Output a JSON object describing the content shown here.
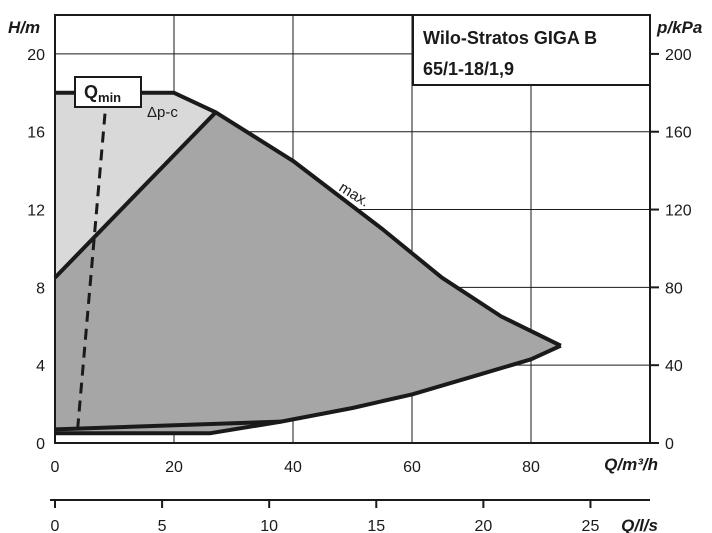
{
  "chart_data": {
    "type": "area",
    "title": "Wilo-Stratos GIGA B",
    "subtitle": "65/1-18/1,9",
    "xlabel": "Q/m³/h",
    "ylabel": "H/m",
    "y2label": "p/kPa",
    "x2label": "Q/l/s",
    "xlim": [
      0,
      100
    ],
    "ylim": [
      0,
      22
    ],
    "y2lim": [
      0,
      220
    ],
    "x2lim": [
      0,
      27.78
    ],
    "x_ticks": [
      "0",
      "20",
      "40",
      "60",
      "80"
    ],
    "y_ticks": [
      "0",
      "4",
      "8",
      "12",
      "16",
      "20"
    ],
    "y2_ticks": [
      "0",
      "40",
      "80",
      "120",
      "160",
      "200"
    ],
    "x2_ticks": [
      "0",
      "5",
      "10",
      "15",
      "20",
      "25"
    ],
    "grid": true,
    "qmin_label": "Q",
    "qmin_sub": "min",
    "series": [
      {
        "name": "max.",
        "x": [
          0,
          20,
          27,
          40,
          55,
          65,
          75,
          85
        ],
        "y": [
          18,
          18,
          17,
          14.5,
          11,
          8.5,
          6.5,
          5
        ]
      },
      {
        "name": "Δp-c",
        "x": [
          0,
          27
        ],
        "y": [
          8.5,
          17
        ]
      },
      {
        "name": "",
        "x": [
          0,
          26,
          38,
          50,
          60,
          70,
          80,
          85
        ],
        "y": [
          0.5,
          0.5,
          1.1,
          1.8,
          2.5,
          3.4,
          4.3,
          5
        ]
      },
      {
        "name": "",
        "x": [
          0,
          38
        ],
        "y": [
          0.7,
          1.1
        ]
      },
      {
        "name": "Qmin",
        "x": [
          3.8,
          8.7
        ],
        "y": [
          0.7,
          18
        ]
      }
    ],
    "colors": {
      "max_region": "#a6a6a6",
      "dpc_region": "#d9d9d9",
      "lines": "#1a1a1a"
    }
  }
}
